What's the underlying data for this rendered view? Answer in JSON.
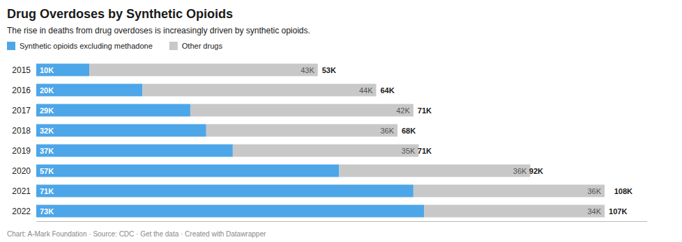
{
  "chart_data": {
    "type": "bar",
    "orientation": "horizontal",
    "stacked": true,
    "title": "Drug Overdoses by Synthetic Opioids",
    "subtitle": "The rise in deaths from drug overdoses is increasingly driven by synthetic opioids.",
    "footnote": "Chart: A-Mark Foundation · Source: CDC · Get the data · Created with Datawrapper",
    "categories": [
      "2015",
      "2016",
      "2017",
      "2018",
      "2019",
      "2020",
      "2021",
      "2022"
    ],
    "series": [
      {
        "name": "Synthetic opioids excluding methadone",
        "color": "#4da6e8",
        "values": [
          10,
          20,
          29,
          32,
          37,
          57,
          71,
          73
        ],
        "value_labels": [
          "10K",
          "20K",
          "29K",
          "32K",
          "37K",
          "57K",
          "71K",
          "73K"
        ]
      },
      {
        "name": "Other drugs",
        "color": "#c8c8c8",
        "values": [
          43,
          44,
          42,
          36,
          35,
          36,
          36,
          34
        ],
        "value_labels": [
          "43K",
          "44K",
          "42K",
          "36K",
          "35K",
          "36K",
          "36K",
          "34K"
        ]
      }
    ],
    "totals": {
      "values": [
        53,
        64,
        71,
        68,
        71,
        92,
        108,
        107
      ],
      "value_labels": [
        "53K",
        "64K",
        "71K",
        "68K",
        "71K",
        "92K",
        "108K",
        "107K"
      ]
    },
    "xlim": [
      0,
      115
    ],
    "data_labels": true,
    "tick_labels": "y",
    "grid": false,
    "legend": "top-left"
  }
}
